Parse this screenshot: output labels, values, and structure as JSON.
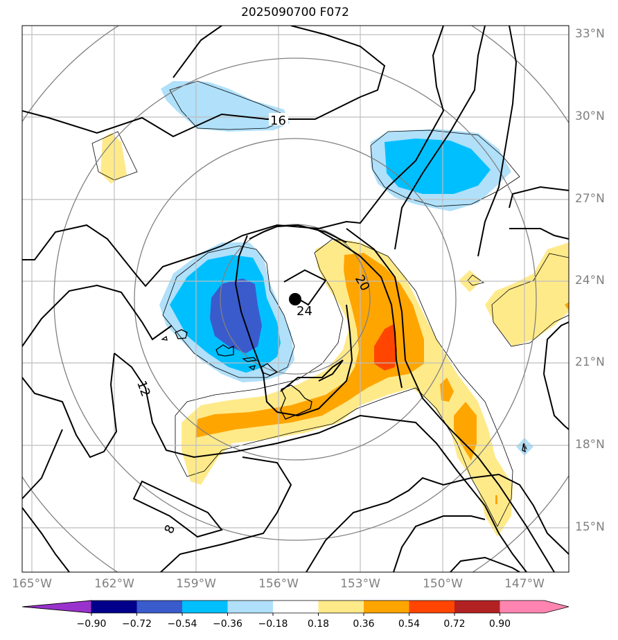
{
  "title": "2025090700 F072",
  "lat_labels": [
    "33°N",
    "30°N",
    "27°N",
    "24°N",
    "21°N",
    "18°N",
    "15°N"
  ],
  "lon_labels": [
    "165°W",
    "162°W",
    "159°W",
    "156°W",
    "153°W",
    "150°W",
    "147°W"
  ],
  "contour_labels": [
    "16",
    "20",
    "24",
    "12",
    "8"
  ],
  "colorbar": {
    "ticks": [
      "−0.90",
      "−0.72",
      "−0.54",
      "−0.36",
      "−0.18",
      "0.18",
      "0.36",
      "0.54",
      "0.72",
      "0.90"
    ],
    "colors": [
      "#9932cc",
      "#00008b",
      "#3a5bcc",
      "#00bfff",
      "#b0e0fa",
      "#ffffff",
      "#ffea8a",
      "#ffa500",
      "#ff4500",
      "#b22222",
      "#ff85b0"
    ]
  },
  "storm_center": {
    "lat": 23.4,
    "lon": -155.6
  }
}
